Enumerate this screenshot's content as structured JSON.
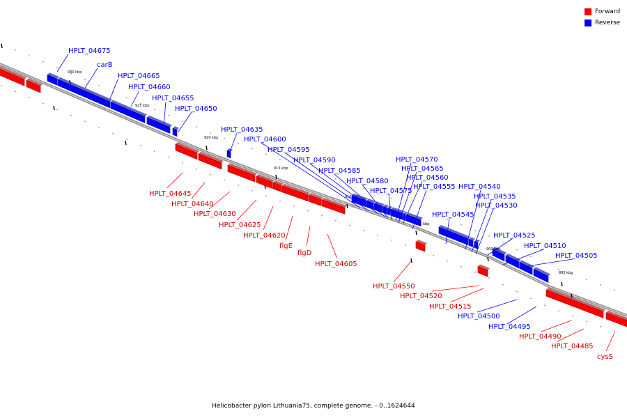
{
  "legend": {
    "forward_label": "Forward",
    "reverse_label": "Reverse",
    "forward_color": "#ff0000",
    "reverse_color": "#0000ff"
  },
  "caption": "Helicobacter pylori Lithuania75, complete genome. - 0..1624644",
  "ticks": [
    "930 kbp",
    "925 kbp",
    "920 kbp",
    "915 kbp",
    "910 kbp",
    "905 kbp",
    "900 kbp",
    "895 kbp"
  ],
  "genes": [
    {
      "label": "HPLT_04675",
      "strand": "reverse"
    },
    {
      "label": "carB",
      "strand": "reverse"
    },
    {
      "label": "HPLT_04665",
      "strand": "reverse"
    },
    {
      "label": "HPLT_04660",
      "strand": "reverse"
    },
    {
      "label": "HPLT_04655",
      "strand": "reverse"
    },
    {
      "label": "HPLT_04650",
      "strand": "reverse"
    },
    {
      "label": "HPLT_04635",
      "strand": "reverse"
    },
    {
      "label": "HPLT_04600",
      "strand": "reverse"
    },
    {
      "label": "HPLT_04595",
      "strand": "reverse"
    },
    {
      "label": "HPLT_04590",
      "strand": "reverse"
    },
    {
      "label": "HPLT_04585",
      "strand": "reverse"
    },
    {
      "label": "HPLT_04580",
      "strand": "reverse"
    },
    {
      "label": "HPLT_04575",
      "strand": "reverse"
    },
    {
      "label": "HPLT_04570",
      "strand": "reverse"
    },
    {
      "label": "HPLT_04565",
      "strand": "reverse"
    },
    {
      "label": "HPLT_04560",
      "strand": "reverse"
    },
    {
      "label": "HPLT_04555",
      "strand": "reverse"
    },
    {
      "label": "HPLT_04545",
      "strand": "reverse"
    },
    {
      "label": "HPLT_04540",
      "strand": "reverse"
    },
    {
      "label": "HPLT_04535",
      "strand": "reverse"
    },
    {
      "label": "HPLT_04530",
      "strand": "reverse"
    },
    {
      "label": "HPLT_04525",
      "strand": "reverse"
    },
    {
      "label": "HPLT_04510",
      "strand": "reverse"
    },
    {
      "label": "HPLT_04505",
      "strand": "reverse"
    },
    {
      "label": "HPLT_04500",
      "strand": "reverse"
    },
    {
      "label": "HPLT_04495",
      "strand": "reverse"
    },
    {
      "label": "HPLT_04645",
      "strand": "forward"
    },
    {
      "label": "HPLT_04640",
      "strand": "forward"
    },
    {
      "label": "HPLT_04630",
      "strand": "forward"
    },
    {
      "label": "HPLT_04625",
      "strand": "forward"
    },
    {
      "label": "HPLT_04620",
      "strand": "forward"
    },
    {
      "label": "flgE",
      "strand": "forward"
    },
    {
      "label": "flgD",
      "strand": "forward"
    },
    {
      "label": "HPLT_04605",
      "strand": "forward"
    },
    {
      "label": "HPLT_04550",
      "strand": "forward"
    },
    {
      "label": "HPLT_04520",
      "strand": "forward"
    },
    {
      "label": "HPLT_04515",
      "strand": "forward"
    },
    {
      "label": "HPLT_04490",
      "strand": "forward"
    },
    {
      "label": "HPLT_04485",
      "strand": "forward"
    },
    {
      "label": "cysS",
      "strand": "forward"
    }
  ]
}
